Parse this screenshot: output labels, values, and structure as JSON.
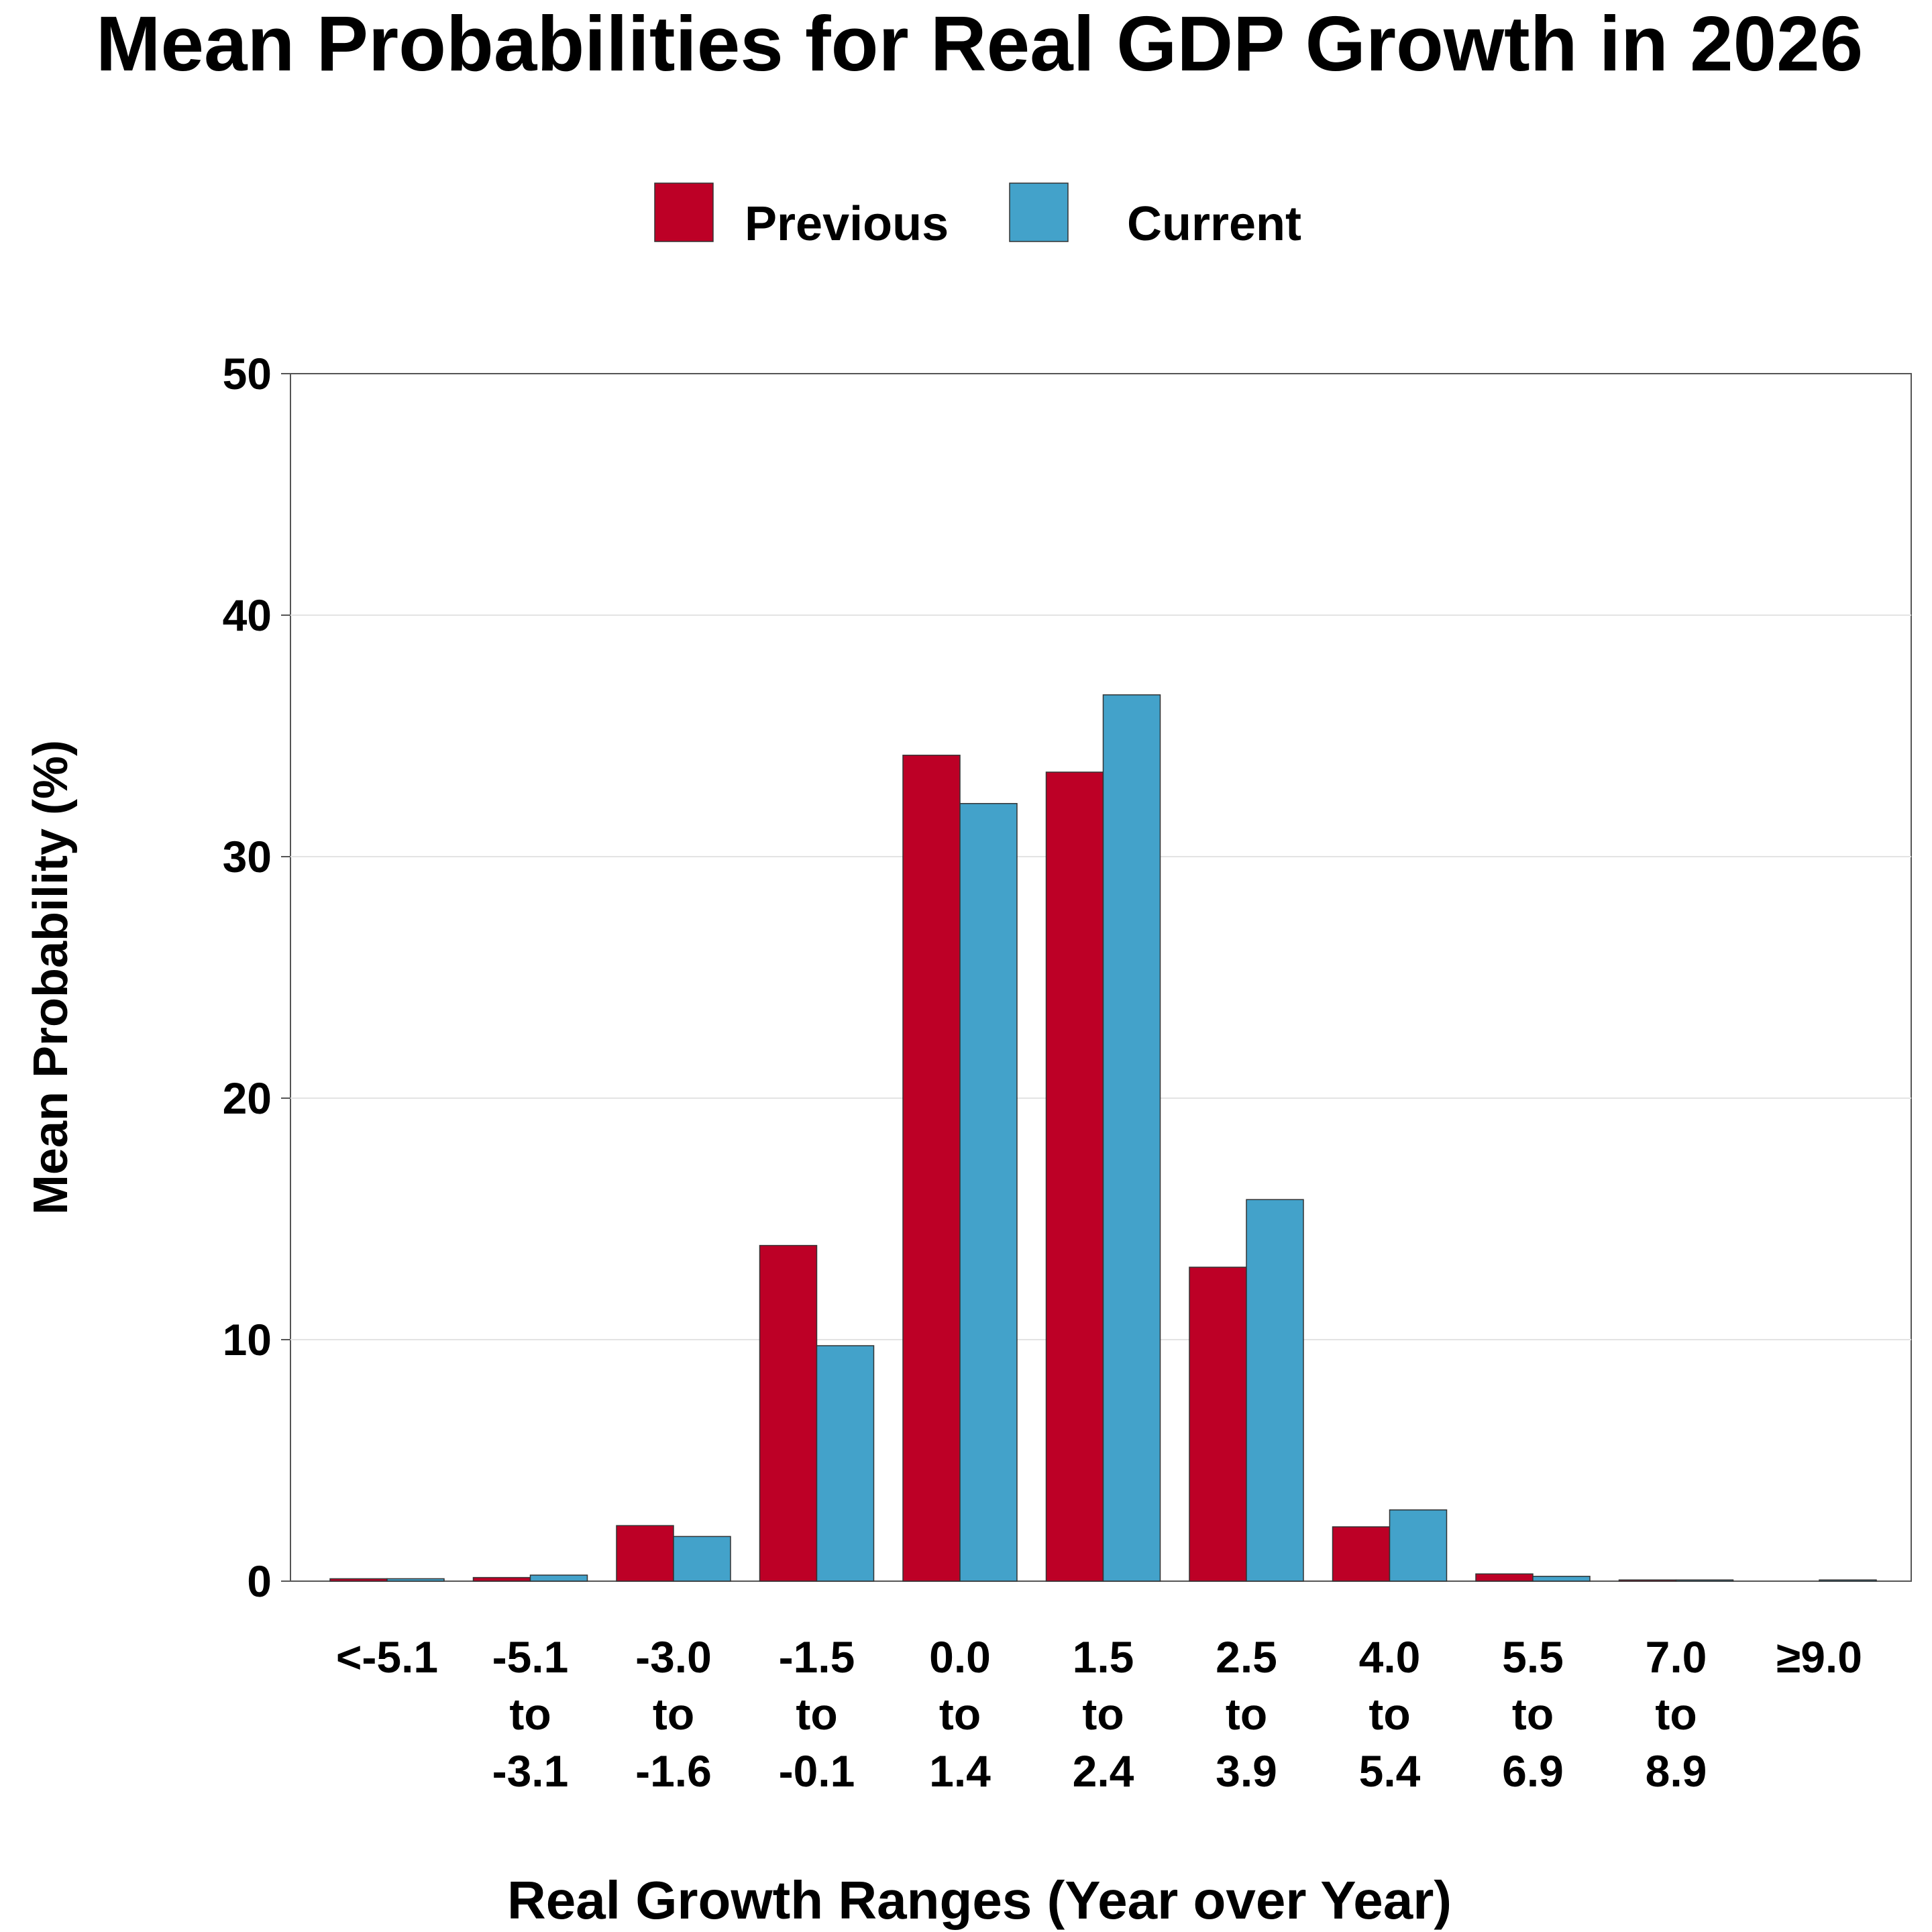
{
  "chart_data": {
    "type": "bar",
    "title": "Mean Probabilities for Real GDP Growth in 2026",
    "xlabel": "Real Growth Ranges (Year over Year)",
    "ylabel": "Mean Probability (%)",
    "ylim": [
      0,
      50
    ],
    "yticks": [
      "0",
      "10",
      "20",
      "30",
      "40",
      "50"
    ],
    "grid": true,
    "legend_position": "top-center",
    "categories": [
      [
        "<-5.1"
      ],
      [
        "-5.1",
        "to",
        "-3.1"
      ],
      [
        "-3.0",
        "to",
        "-1.6"
      ],
      [
        "-1.5",
        "to",
        "-0.1"
      ],
      [
        "0.0",
        "to",
        "1.4"
      ],
      [
        "1.5",
        "to",
        "2.4"
      ],
      [
        "2.5",
        "to",
        "3.9"
      ],
      [
        "4.0",
        "to",
        "5.4"
      ],
      [
        "5.5",
        "to",
        "6.9"
      ],
      [
        "7.0",
        "to",
        "8.9"
      ],
      [
        "≥9.0"
      ]
    ],
    "series": [
      {
        "name": "Previous",
        "color": "#BD0026",
        "values": [
          0.1,
          0.15,
          2.3,
          13.9,
          34.2,
          33.5,
          13.0,
          2.25,
          0.3,
          0.05,
          0.0
        ]
      },
      {
        "name": "Current",
        "color": "#43A2CA",
        "values": [
          0.1,
          0.25,
          1.85,
          9.75,
          32.2,
          36.7,
          15.8,
          2.95,
          0.2,
          0.05,
          0.05
        ]
      }
    ]
  }
}
